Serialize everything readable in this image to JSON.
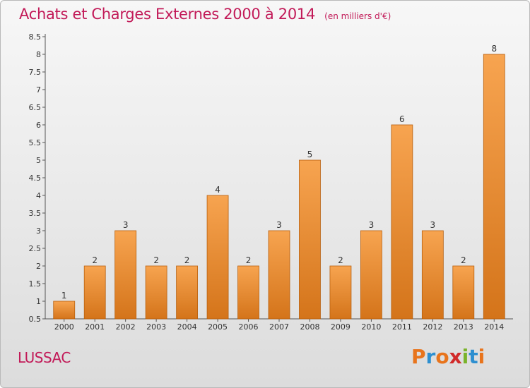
{
  "header": {
    "title": "Achats et Charges Externes 2000 à 2014",
    "subtitle": "(en milliers d'€)"
  },
  "footer": {
    "commune": "LUSSAC",
    "brand_letters": [
      "P",
      "r",
      "o",
      "x",
      "i",
      "t",
      "i"
    ],
    "brand_colors": [
      "#e8741c",
      "#2d8fd0",
      "#e8741c",
      "#d12a2a",
      "#7ab32a",
      "#2d8fd0",
      "#e8741c"
    ]
  },
  "colors": {
    "bar_top": "#f7a450",
    "bar_bottom": "#d4741a",
    "bar_edge": "#b8600e",
    "text": "#333333",
    "accent": "#c21a58"
  },
  "chart_data": {
    "type": "bar",
    "categories": [
      "2000",
      "2001",
      "2002",
      "2003",
      "2004",
      "2005",
      "2006",
      "2007",
      "2008",
      "2009",
      "2010",
      "2011",
      "2012",
      "2013",
      "2014"
    ],
    "values": [
      1,
      2,
      3,
      2,
      2,
      4,
      2,
      3,
      5,
      2,
      3,
      6,
      3,
      2,
      8
    ],
    "data_labels": [
      "1",
      "2",
      "3",
      "2",
      "2",
      "4",
      "2",
      "3",
      "5",
      "2",
      "3",
      "6",
      "3",
      "2",
      "8"
    ],
    "yticks": [
      0.5,
      1,
      1.5,
      2,
      2.5,
      3,
      3.5,
      4,
      4.5,
      5,
      5.5,
      6,
      6.5,
      7,
      7.5,
      8,
      8.5
    ],
    "ytick_labels": [
      "0.5",
      "1",
      "1.5",
      "2",
      "2.5",
      "3",
      "3.5",
      "4",
      "4.5",
      "5",
      "5.5",
      "6",
      "6.5",
      "7",
      "7.5",
      "8",
      "8.5"
    ],
    "ylim": [
      0.5,
      8.5
    ],
    "title": "Achats et Charges Externes 2000 à 2014",
    "xlabel": "",
    "ylabel": "",
    "grid": false,
    "legend": "none"
  }
}
